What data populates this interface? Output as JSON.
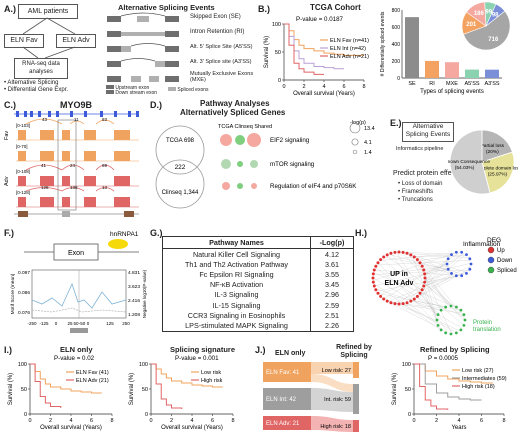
{
  "panel_labels": {
    "a": "A.)",
    "b": "B.)",
    "c": "C.)",
    "d": "D.)",
    "e": "E.)",
    "f": "F.)",
    "g": "G.)",
    "h": "H.)",
    "i": "I.)",
    "j": "J.)"
  },
  "panel_a": {
    "aml_box": "AML patients",
    "eln_fav": "ELN Fav",
    "eln_adv": "ELN Adv",
    "rnaseq_box": "RNA-seq data analyses",
    "bullets": [
      "• Alternative Splicing",
      "• Differential Gene Expr."
    ],
    "as_title": "Alternative Splicing Events",
    "event_types": [
      "Skipped Exon (SE)",
      "Intron Retention (RI)",
      "Alt. 5' Splice Site (A5'SS)",
      "Alt. 3' Splice site (A3'SS)",
      "Mutually Exclusive Exons (MXE)"
    ],
    "legend": [
      "Upstream exon",
      "Down stream exon",
      "Spliced exons"
    ],
    "colors": {
      "fav": "#c9c9c9",
      "adv": "#4a4a4a",
      "exon": "#6e6e6e",
      "spliced": "#b0b0b0"
    }
  },
  "panel_b": {
    "title": "TCGA Cohort",
    "pvalue": "P-value = 0.0187",
    "ylabel": "Survival (%)",
    "xlabel": "Overall survival (Years)",
    "bar_ylabel": "# Differentially spliced events",
    "bar_xlabel": "Types of splicing events"
  },
  "panel_c": {
    "gene": "MYO9B",
    "fav": "Fav",
    "adv": "Adv",
    "track_ranges": [
      "[0-103]",
      "[0-70]",
      "[0-108]",
      "[0-128]"
    ],
    "junction_labels_fav": [
      "43",
      "11",
      "83"
    ],
    "junction_labels_adv": [
      "41",
      "24",
      "69",
      "128",
      "138",
      "13"
    ]
  },
  "panel_d": {
    "title1": "Pathway Analyses",
    "title2": "Alternatively Spliced Genes",
    "tcga_label": "TCGA 698",
    "shared": "222",
    "clinseq_label": "Clinseq 1,344",
    "heading": "TCGA Clinseq Shared",
    "pathways": [
      "EIF2 signaling",
      "mTOR signaling",
      "Regulation of eIF4 and p70S6K"
    ],
    "size_title": "-log(p)",
    "size_values": [
      "13.4",
      "4.1",
      "1.4"
    ]
  },
  "panel_e": {
    "box": "Alternative Splicing Events",
    "pipeline": "Informatics pipeline",
    "predict": "Predict protein effect",
    "effects": [
      "• Loss of domain",
      "• Frameshifts",
      "• Truncations"
    ],
    "pie_labels": [
      {
        "name": "Partial loss",
        "pct": "(20%)"
      },
      {
        "name": "Complete domain loss",
        "pct": "(25.97%)"
      },
      {
        "name": "Unknown Consequence",
        "pct": "(54.03%)"
      }
    ]
  },
  "panel_f": {
    "exon": "Exon",
    "protein": "hnRNPA1",
    "ylabel_left": "Motif Score (mean)",
    "ylabel_right": "Negative log10(P-value)",
    "y_left_ticks": [
      "0.097",
      "0.086",
      "0.076"
    ],
    "y_right_ticks": [
      "4.831",
      "3.623",
      "2.416",
      "1.208"
    ],
    "x_ticks": [
      "-250",
      "-125",
      "0",
      "25",
      "50",
      "-50",
      "0",
      "125",
      "250"
    ]
  },
  "panel_g": {
    "col1": "Pathway Names",
    "col2": "-Log(p)",
    "rows": [
      {
        "name": "Natural Killer Cell Signaling",
        "value": "4.12"
      },
      {
        "name": "Th1 and Th2 Activation Pathway",
        "value": "3.61"
      },
      {
        "name": "Fc Epsilon RI Signaling",
        "value": "3.55"
      },
      {
        "name": "NF-κB Activation",
        "value": "3.45"
      },
      {
        "name": "IL-3 Signaling",
        "value": "2.96"
      },
      {
        "name": "IL-15 Signaling",
        "value": "2.59"
      },
      {
        "name": "CCR3 Signaling in Eosinophils",
        "value": "2.51"
      },
      {
        "name": "LPS-stimulated MAPK Signaling",
        "value": "2.26"
      }
    ]
  },
  "panel_h": {
    "up_label": "UP in ELN Adv",
    "inflammation": "Inflammation",
    "protein_translation": "Protein translation",
    "legend_title": "DEG",
    "legend": [
      {
        "name": "Up",
        "color": "#e03131"
      },
      {
        "name": "Down",
        "color": "#3b5bdb"
      },
      {
        "name": "Spliced",
        "color": "#37b24d"
      }
    ]
  },
  "panel_i": {
    "left_title": "ELN only",
    "left_p": "P-value = 0.02",
    "left_legend": [
      "ELN Fav (41)",
      "ELN Adv (21)"
    ],
    "right_title": "Splicing signature",
    "right_p": "P-value = 0.001",
    "right_legend": [
      "Low risk",
      "High risk"
    ],
    "ylabel": "Survival (%)",
    "xlabel": "Overall survival (Years)"
  },
  "panel_j": {
    "left_title": "ELN only",
    "refined_title": "Refined by Splicing",
    "left_boxes": [
      "ELN Fav: 41",
      "ELN Int: 42",
      "ELN Adv: 21"
    ],
    "right_boxes": [
      "Low risk: 27",
      "Int. risk: 59",
      "High risk: 18"
    ],
    "km_title": "Refined by Splicing",
    "km_p": "P = 0.0005",
    "km_legend": [
      "Low risk (27)",
      "Intermediates (59)",
      "High risk (18)"
    ],
    "ylabel": "Survival (%)",
    "xlabel": "Years"
  },
  "chart_data": [
    {
      "type": "line",
      "title": "TCGA Cohort",
      "xlabel": "Overall survival (Years)",
      "ylabel": "Survival (%)",
      "xlim": [
        0,
        8
      ],
      "ylim": [
        0,
        100
      ],
      "x_ticks": [
        0,
        2,
        4,
        6,
        8
      ],
      "y_ticks": [
        0,
        50,
        100
      ],
      "legend_position": "top-right",
      "series": [
        {
          "name": "ELN Fav (n=41)",
          "color": "#f0a35e",
          "x": [
            0,
            0.5,
            1,
            1.5,
            2,
            3,
            4,
            5,
            6,
            7,
            8
          ],
          "y": [
            100,
            88,
            72,
            62,
            56,
            52,
            48,
            46,
            44,
            44,
            44
          ]
        },
        {
          "name": "ELN Int (n=42)",
          "color": "#b9a0d6",
          "x": [
            0,
            0.5,
            1,
            1.5,
            2,
            3,
            4,
            5,
            6
          ],
          "y": [
            100,
            78,
            52,
            38,
            30,
            24,
            22,
            20,
            20
          ]
        },
        {
          "name": "ELN Adv (n=21)",
          "color": "#e06666",
          "x": [
            0,
            0.5,
            1,
            1.5,
            2,
            3,
            4
          ],
          "y": [
            100,
            62,
            30,
            20,
            14,
            10,
            10
          ]
        }
      ]
    },
    {
      "type": "bar",
      "xlabel": "Types of splicing events",
      "ylabel": "# Differentially spliced events",
      "categories": [
        "SE",
        "RI",
        "MXE",
        "A5'SS",
        "A3'SS"
      ],
      "values": [
        716,
        201,
        186,
        99,
        98
      ],
      "ylim": [
        0,
        800
      ],
      "y_ticks": [
        0,
        100,
        200,
        300,
        400,
        500,
        600,
        700,
        800
      ],
      "colors": [
        "#8c8c8c",
        "#f4a261",
        "#f4a8a0",
        "#8bd3b0",
        "#7b8fd9"
      ]
    },
    {
      "type": "pie",
      "categories": [
        "SE",
        "RI",
        "MXE",
        "A5'SS",
        "A3'SS"
      ],
      "values": [
        716,
        201,
        186,
        99,
        98
      ],
      "colors": [
        "#a6a6a6",
        "#f4a261",
        "#f4a8a0",
        "#8bd3b0",
        "#7b8fd9"
      ]
    },
    {
      "type": "pie",
      "categories": [
        "Partial loss",
        "Complete domain loss",
        "Unknown Consequence"
      ],
      "values": [
        20,
        25.97,
        54.03
      ],
      "colors": [
        "#b5b5b5",
        "#e6e29a",
        "#cfcfcf"
      ]
    },
    {
      "type": "line",
      "title": "ELN only",
      "xlabel": "Overall survival (Years)",
      "ylabel": "Survival (%)",
      "xlim": [
        0,
        8
      ],
      "ylim": [
        0,
        100
      ],
      "x_ticks": [
        0,
        2,
        4,
        6,
        8
      ],
      "y_ticks": [
        0,
        50,
        100
      ],
      "series": [
        {
          "name": "ELN Fav (41)",
          "color": "#f0a35e",
          "x": [
            0,
            0.5,
            1,
            1.5,
            2,
            3,
            4,
            5,
            6,
            7
          ],
          "y": [
            100,
            85,
            70,
            60,
            54,
            50,
            46,
            44,
            42,
            42
          ]
        },
        {
          "name": "ELN Adv (21)",
          "color": "#e06666",
          "x": [
            0,
            0.5,
            1,
            1.5,
            2,
            3
          ],
          "y": [
            100,
            65,
            35,
            22,
            15,
            12
          ]
        }
      ]
    },
    {
      "type": "line",
      "title": "Splicing signature",
      "xlabel": "Overall survival (Years)",
      "ylabel": "Survival (%)",
      "xlim": [
        0,
        8
      ],
      "ylim": [
        0,
        100
      ],
      "x_ticks": [
        0,
        2,
        4,
        6,
        8
      ],
      "y_ticks": [
        0,
        50,
        100
      ],
      "series": [
        {
          "name": "Low risk",
          "color": "#f0a35e",
          "x": [
            0,
            0.5,
            1,
            1.5,
            2,
            3,
            4,
            5,
            6,
            7
          ],
          "y": [
            100,
            90,
            80,
            72,
            66,
            62,
            58,
            56,
            54,
            54
          ]
        },
        {
          "name": "High risk",
          "color": "#e06666",
          "x": [
            0,
            0.5,
            1,
            1.5,
            2,
            3
          ],
          "y": [
            100,
            60,
            30,
            18,
            12,
            10
          ]
        }
      ]
    },
    {
      "type": "line",
      "title": "Refined by Splicing",
      "xlabel": "Years",
      "ylabel": "Survival (%)",
      "xlim": [
        0,
        8
      ],
      "ylim": [
        0,
        100
      ],
      "x_ticks": [
        0,
        2,
        4,
        6,
        8
      ],
      "y_ticks": [
        0,
        50,
        100
      ],
      "series": [
        {
          "name": "Low risk (27)",
          "color": "#f0a35e",
          "x": [
            0,
            1,
            2,
            3,
            4,
            5,
            6,
            7
          ],
          "y": [
            100,
            86,
            76,
            70,
            66,
            64,
            62,
            62
          ]
        },
        {
          "name": "Intermediates (59)",
          "color": "#9e9e9e",
          "x": [
            0,
            1,
            2,
            3,
            4,
            5,
            6
          ],
          "y": [
            100,
            60,
            42,
            34,
            30,
            28,
            28
          ]
        },
        {
          "name": "High risk (18)",
          "color": "#e06666",
          "x": [
            0,
            0.5,
            1,
            1.5,
            2,
            3
          ],
          "y": [
            100,
            55,
            28,
            16,
            10,
            8
          ]
        }
      ]
    }
  ]
}
